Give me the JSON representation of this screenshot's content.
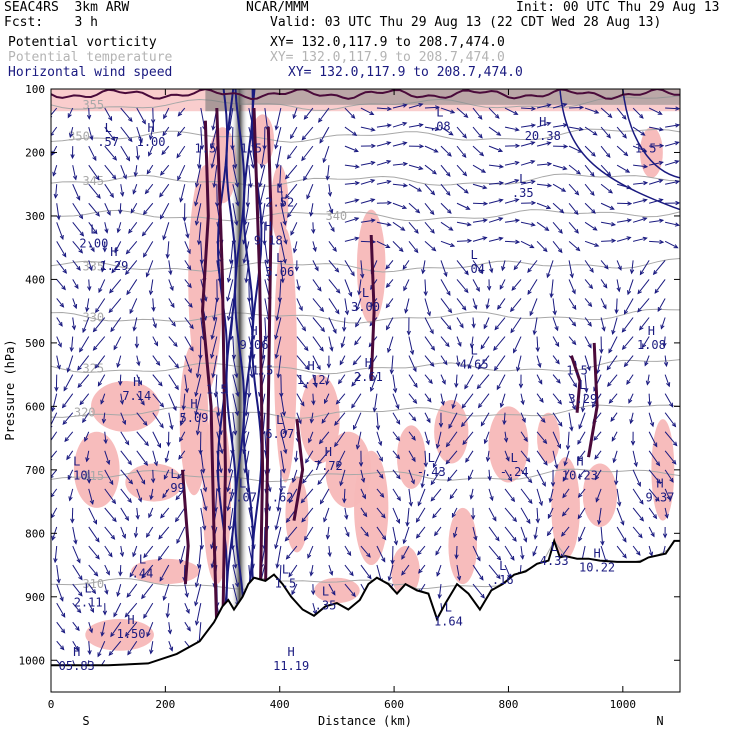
{
  "header": {
    "model": "SEAC4RS  3km ARW",
    "fcst": "Fcst:    3 h",
    "org": "NCAR/MMM",
    "init": "Init: 00 UTC Thu 29 Aug 13",
    "valid": "Valid: 03 UTC Thu 29 Aug 13 (22 CDT Wed 28 Aug 13)"
  },
  "fields": [
    {
      "name": "Potential vorticity",
      "xy": "XY= 132.0,117.9 to 208.7,474.0",
      "color": "#000000"
    },
    {
      "name": "Potential temperature",
      "xy": "XY= 132.0,117.9 to 208.7,474.0",
      "color": "#b4b4b4"
    },
    {
      "name": "Horizontal wind speed",
      "xy": "XY= 132.0,117.9 to 208.7,474.0",
      "color": "#1a1a80"
    }
  ],
  "chart_data": {
    "type": "cross-section",
    "xlabel": "Distance (km)",
    "ylabel": "Pressure (hPa)",
    "xlim": [
      0,
      1100
    ],
    "ylim": [
      1050,
      100
    ],
    "x_ticks": [
      0,
      200,
      400,
      600,
      800,
      1000
    ],
    "y_ticks": [
      100,
      200,
      300,
      400,
      500,
      600,
      700,
      800,
      900,
      1000
    ],
    "x_end_labels": {
      "left": "S",
      "right": "N"
    },
    "colors": {
      "terrain": "#000000",
      "pv_fill": "#f7b8b8",
      "pv_contour": "#4a0a3a",
      "wind": "#1a1a80",
      "theta": "#a8a8a8"
    },
    "terrain": [
      [
        0,
        1008
      ],
      [
        100,
        1008
      ],
      [
        170,
        1005
      ],
      [
        220,
        990
      ],
      [
        260,
        970
      ],
      [
        285,
        940
      ],
      [
        300,
        915
      ],
      [
        310,
        905
      ],
      [
        320,
        920
      ],
      [
        335,
        900
      ],
      [
        345,
        880
      ],
      [
        355,
        870
      ],
      [
        375,
        875
      ],
      [
        390,
        865
      ],
      [
        405,
        880
      ],
      [
        420,
        900
      ],
      [
        440,
        920
      ],
      [
        460,
        930
      ],
      [
        480,
        915
      ],
      [
        500,
        910
      ],
      [
        520,
        920
      ],
      [
        540,
        905
      ],
      [
        555,
        880
      ],
      [
        570,
        870
      ],
      [
        590,
        880
      ],
      [
        605,
        895
      ],
      [
        620,
        880
      ],
      [
        640,
        890
      ],
      [
        660,
        895
      ],
      [
        675,
        935
      ],
      [
        690,
        910
      ],
      [
        710,
        880
      ],
      [
        730,
        895
      ],
      [
        750,
        920
      ],
      [
        770,
        890
      ],
      [
        790,
        880
      ],
      [
        810,
        865
      ],
      [
        830,
        860
      ],
      [
        850,
        848
      ],
      [
        870,
        843
      ],
      [
        880,
        812
      ],
      [
        890,
        838
      ],
      [
        900,
        836
      ],
      [
        920,
        840
      ],
      [
        940,
        840
      ],
      [
        960,
        843
      ],
      [
        990,
        845
      ],
      [
        1010,
        845
      ],
      [
        1030,
        845
      ],
      [
        1045,
        838
      ],
      [
        1060,
        835
      ],
      [
        1075,
        832
      ],
      [
        1090,
        812
      ],
      [
        1100,
        812
      ]
    ],
    "theta_isentropes": [
      {
        "label": "355",
        "p": 125,
        "label_x": 55
      },
      {
        "label": "350",
        "p": 175,
        "label_x": 30
      },
      {
        "label": "345",
        "p": 245,
        "label_x": 55
      },
      {
        "label": "340",
        "p": 300,
        "label_x": 480
      },
      {
        "label": "335",
        "p": 380,
        "label_x": 55
      },
      {
        "label": "330",
        "p": 460,
        "label_x": 55
      },
      {
        "label": "325",
        "p": 540,
        "label_x": 55
      },
      {
        "label": "320",
        "p": 610,
        "label_x": 40
      },
      {
        "label": "315",
        "p": 710,
        "label_x": 55
      },
      {
        "label": "310",
        "p": 880,
        "label_x": 55
      }
    ],
    "pv_high_core_km": [
      315,
      345
    ],
    "extrema_labels": [
      {
        "type": "L",
        "value": ".57",
        "x": 100,
        "p": 190
      },
      {
        "type": "H",
        "value": "1.00",
        "x": 175,
        "p": 190
      },
      {
        "type": "L",
        "value": "2.00",
        "x": 75,
        "p": 350
      },
      {
        "type": "H",
        "value": "1.29",
        "x": 110,
        "p": 385
      },
      {
        "type": "H",
        "value": "7.14",
        "x": 150,
        "p": 590
      },
      {
        "type": "L",
        "value": ".10",
        "x": 45,
        "p": 715
      },
      {
        "type": "L",
        "value": ".99",
        "x": 215,
        "p": 735
      },
      {
        "type": "L",
        "value": ".44",
        "x": 160,
        "p": 870
      },
      {
        "type": "L",
        "value": "2.11",
        "x": 65,
        "p": 915
      },
      {
        "type": "H",
        "value": "1.50",
        "x": 140,
        "p": 965
      },
      {
        "type": "H",
        "value": "5.09",
        "x": 250,
        "p": 625
      },
      {
        "type": "L",
        "value": "2.52",
        "x": 400,
        "p": 285
      },
      {
        "type": "H",
        "value": "9.18",
        "x": 380,
        "p": 345
      },
      {
        "type": "L",
        "value": "5.06",
        "x": 400,
        "p": 395
      },
      {
        "type": "H",
        "value": "9.06",
        "x": 355,
        "p": 510
      },
      {
        "type": "L",
        "value": "6.07",
        "x": 400,
        "p": 650
      },
      {
        "type": "L",
        "value": "7.07",
        "x": 335,
        "p": 750
      },
      {
        "type": "L",
        "value": ".62",
        "x": 405,
        "p": 750
      },
      {
        "type": "H",
        "value": "1.12",
        "x": 455,
        "p": 565
      },
      {
        "type": "H",
        "value": "7.72",
        "x": 485,
        "p": 700
      },
      {
        "type": "L",
        "value": ".35",
        "x": 480,
        "p": 920
      },
      {
        "type": "L",
        "value": ".08",
        "x": 680,
        "p": 165
      },
      {
        "type": "H",
        "value": "20.38",
        "x": 860,
        "p": 180
      },
      {
        "type": "L",
        "value": ".35",
        "x": 825,
        "p": 270
      },
      {
        "type": "L",
        "value": ".04",
        "x": 740,
        "p": 390
      },
      {
        "type": "L",
        "value": "3.00",
        "x": 550,
        "p": 450
      },
      {
        "type": "L",
        "value": "4.65",
        "x": 740,
        "p": 540
      },
      {
        "type": "H",
        "value": "1.08",
        "x": 1050,
        "p": 510
      },
      {
        "type": "H",
        "value": "2.61",
        "x": 555,
        "p": 560
      },
      {
        "type": "L",
        "value": "-.43",
        "x": 665,
        "p": 710
      },
      {
        "type": "L",
        "value": "-.24",
        "x": 810,
        "p": 710
      },
      {
        "type": "L",
        "value": "3.29",
        "x": 930,
        "p": 595
      },
      {
        "type": "H",
        "value": "10.23",
        "x": 925,
        "p": 715
      },
      {
        "type": "H",
        "value": "9.37",
        "x": 1065,
        "p": 750
      },
      {
        "type": "L",
        "value": "4.33",
        "x": 880,
        "p": 850
      },
      {
        "type": "H",
        "value": "10.22",
        "x": 955,
        "p": 860
      },
      {
        "type": "L",
        "value": ".16",
        "x": 790,
        "p": 880
      },
      {
        "type": "L",
        "value": "1.5",
        "x": 410,
        "p": 885
      },
      {
        "type": "L",
        "value": "1.64",
        "x": 695,
        "p": 945
      },
      {
        "type": "H",
        "value": "11.19",
        "x": 420,
        "p": 1015
      },
      {
        "type": "H",
        "value": "05.83",
        "x": 45,
        "p": 1015
      }
    ],
    "pv_contour_labels": [
      {
        "value": "1.5",
        "x": 270,
        "p": 200
      },
      {
        "value": "1.5",
        "x": 350,
        "p": 200
      },
      {
        "value": "1.5",
        "x": 290,
        "p": 580
      },
      {
        "value": "1.5",
        "x": 370,
        "p": 550
      },
      {
        "value": "1.5",
        "x": 920,
        "p": 550
      },
      {
        "value": "1.5",
        "x": 1040,
        "p": 200
      }
    ]
  }
}
